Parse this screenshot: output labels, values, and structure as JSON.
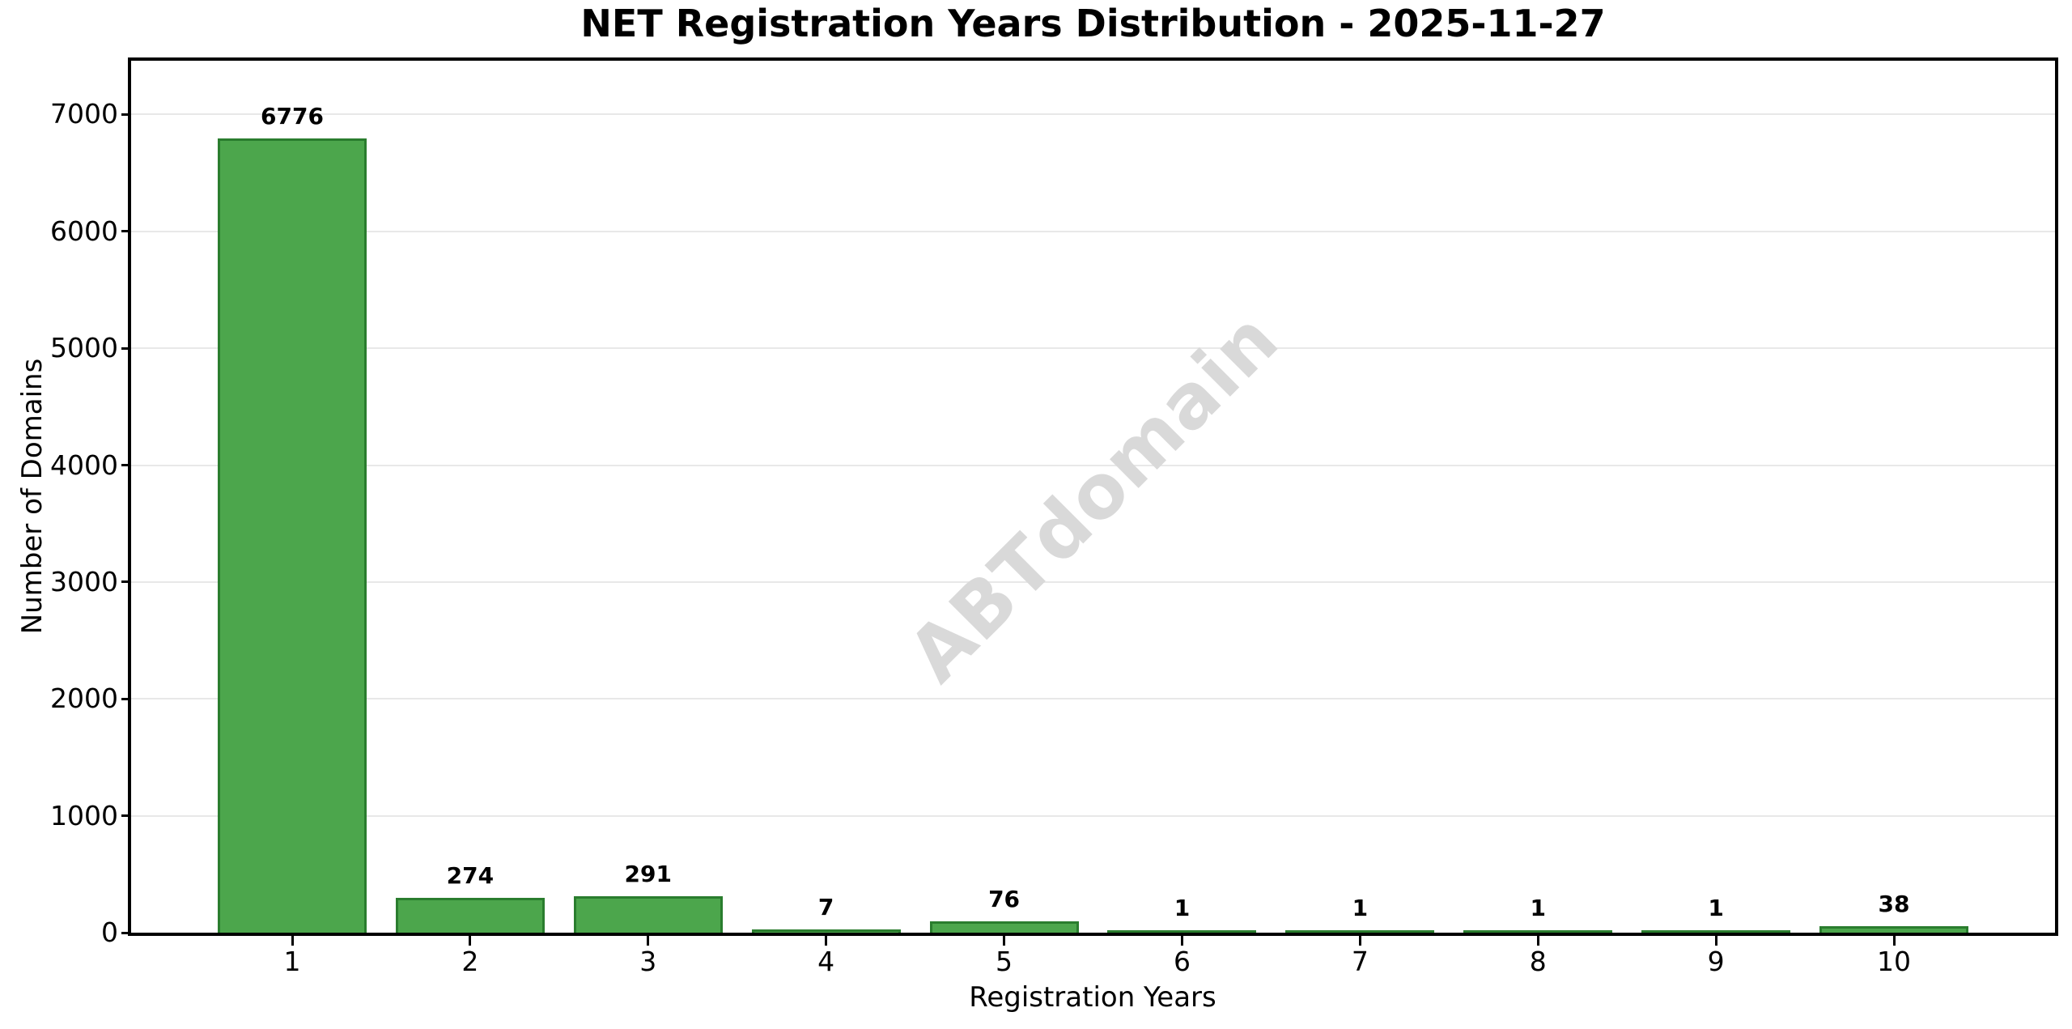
{
  "colors": {
    "background": "#ffffff",
    "grid": "#e8e8e8",
    "axis": "#000000",
    "text": "#000000",
    "watermark_gray": "#d9d9d9",
    "bar_fill": "#4ca64c",
    "bar_edge": "#2a7d2e"
  },
  "watermark": "ABTdomain",
  "chart_data": {
    "type": "bar",
    "title": "NET Registration Years Distribution - 2025-11-27",
    "xlabel": "Registration Years",
    "ylabel": "Number of Domains",
    "categories": [
      "1",
      "2",
      "3",
      "4",
      "5",
      "6",
      "7",
      "8",
      "9",
      "10"
    ],
    "values": [
      6776,
      274,
      291,
      7,
      76,
      1,
      1,
      1,
      1,
      38
    ],
    "value_labels": [
      "6776",
      "274",
      "291",
      "7",
      "76",
      "1",
      "1",
      "1",
      "1",
      "38"
    ],
    "yticks": [
      0,
      1000,
      2000,
      3000,
      4000,
      5000,
      6000,
      7000
    ],
    "ylim": [
      0,
      7460
    ],
    "grid": true,
    "legend": "none",
    "bar_color": "#4ca64c",
    "bar_edge_color": "#2a7d2e",
    "watermark": "ABTdomain"
  }
}
